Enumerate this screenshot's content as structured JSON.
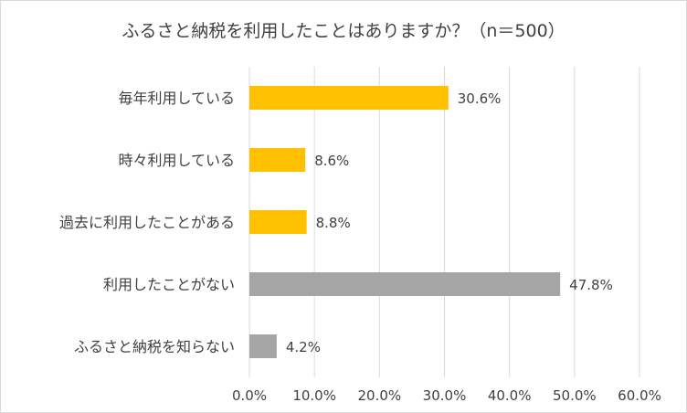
{
  "chart_data": {
    "type": "bar",
    "orientation": "horizontal",
    "title": "ふるさと納税を利用したことはありますか？（n＝500）",
    "categories": [
      "毎年利用している",
      "時々利用している",
      "過去に利用したことがある",
      "利用したことがない",
      "ふるさと納税を知らない"
    ],
    "values": [
      30.6,
      8.6,
      8.8,
      47.8,
      4.2
    ],
    "data_labels": [
      "30.6%",
      "8.6%",
      "8.8%",
      "47.8%",
      "4.2%"
    ],
    "bar_colors": [
      "#FFC000",
      "#FFC000",
      "#FFC000",
      "#A5A5A5",
      "#A5A5A5"
    ],
    "xlim": [
      0,
      60
    ],
    "x_ticks": [
      0,
      10,
      20,
      30,
      40,
      50,
      60
    ],
    "x_tick_labels": [
      "0.0%",
      "10.0%",
      "20.0%",
      "30.0%",
      "40.0%",
      "50.0%",
      "60.0%"
    ],
    "xlabel": "",
    "ylabel": "",
    "grid": "vertical",
    "gridline_color": "#d9d9d9",
    "legend": "none"
  }
}
